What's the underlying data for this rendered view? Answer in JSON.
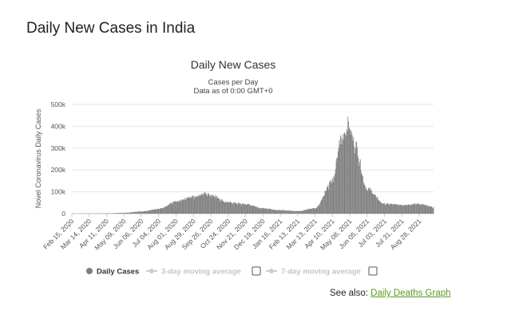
{
  "page": {
    "heading": "Daily New Cases in India",
    "see_also_label": "See also:",
    "see_also_link": "Daily Deaths Graph",
    "link_color": "#5a9a1f"
  },
  "legend": {
    "items": [
      {
        "label": "Daily Cases",
        "active": true,
        "icon": "circle-dot-icon"
      },
      {
        "label": "3-day moving average",
        "active": false,
        "icon": "line-dot-icon"
      },
      {
        "label": "7-day moving average",
        "active": false,
        "icon": "line-dot-icon"
      }
    ]
  },
  "chart_data": {
    "type": "bar",
    "title": "Daily New Cases",
    "subtitle": [
      "Cases per Day",
      "Data as of 0:00 GMT+0"
    ],
    "xlabel": "",
    "ylabel": "Novel Coronavirus Daily Cases",
    "ylim": [
      0,
      500000
    ],
    "yticks": [
      "0",
      "100k",
      "200k",
      "300k",
      "400k",
      "500k"
    ],
    "ytick_values": [
      0,
      100000,
      200000,
      300000,
      400000,
      500000
    ],
    "xticks": [
      "Feb 15, 2020",
      "Mar 14, 2020",
      "Apr 11, 2020",
      "May 09, 2020",
      "Jun 06, 2020",
      "Jul 04, 2020",
      "Aug 01, 2020",
      "Aug 29, 2020",
      "Sep 26, 2020",
      "Oct 24, 2020",
      "Nov 21, 2020",
      "Dec 19, 2020",
      "Jan 16, 2021",
      "Feb 13, 2021",
      "Mar 13, 2021",
      "Apr 10, 2021",
      "May 08, 2021",
      "Jun 05, 2021",
      "Jul 03, 2021",
      "Jul 31, 2021",
      "Aug 28, 2021"
    ],
    "x_start": "Feb 15, 2020",
    "x_end": "Sep 20, 2021",
    "series": [
      {
        "name": "Daily Cases",
        "color": "#7d7d7d",
        "anchors": [
          {
            "date": "Feb 15, 2020",
            "value": 0
          },
          {
            "date": "Mar 14, 2020",
            "value": 20
          },
          {
            "date": "Apr 11, 2020",
            "value": 900
          },
          {
            "date": "May 09, 2020",
            "value": 3500
          },
          {
            "date": "Jun 06, 2020",
            "value": 10000
          },
          {
            "date": "Jul 04, 2020",
            "value": 22000
          },
          {
            "date": "Aug 01, 2020",
            "value": 55000
          },
          {
            "date": "Aug 29, 2020",
            "value": 78000
          },
          {
            "date": "Sep 16, 2020",
            "value": 93000
          },
          {
            "date": "Sep 26, 2020",
            "value": 87000
          },
          {
            "date": "Oct 24, 2020",
            "value": 52000
          },
          {
            "date": "Nov 21, 2020",
            "value": 44000
          },
          {
            "date": "Dec 19, 2020",
            "value": 25000
          },
          {
            "date": "Jan 16, 2021",
            "value": 16000
          },
          {
            "date": "Feb 13, 2021",
            "value": 12000
          },
          {
            "date": "Mar 13, 2021",
            "value": 25000
          },
          {
            "date": "Apr 10, 2021",
            "value": 150000
          },
          {
            "date": "Apr 24, 2021",
            "value": 345000
          },
          {
            "date": "May 06, 2021",
            "value": 414000
          },
          {
            "date": "May 15, 2021",
            "value": 330000
          },
          {
            "date": "Jun 05, 2021",
            "value": 115000
          },
          {
            "date": "Jul 03, 2021",
            "value": 45000
          },
          {
            "date": "Jul 31, 2021",
            "value": 41000
          },
          {
            "date": "Aug 28, 2021",
            "value": 45000
          },
          {
            "date": "Sep 20, 2021",
            "value": 30000
          }
        ]
      }
    ],
    "grid": true,
    "legend_position": "bottom"
  }
}
